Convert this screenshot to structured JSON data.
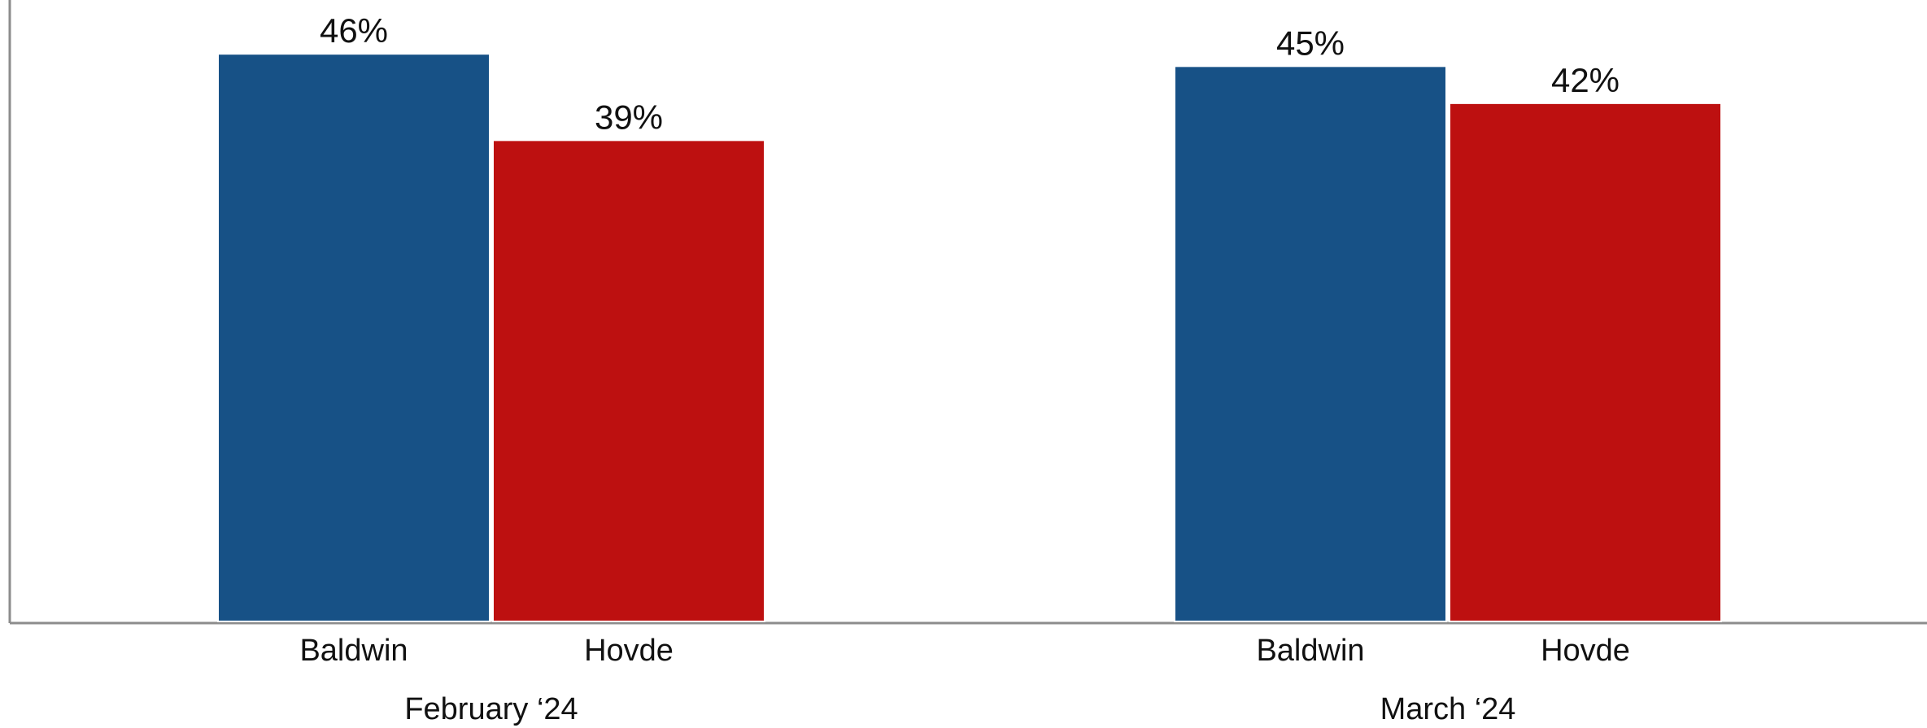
{
  "chart_data": {
    "type": "bar",
    "title": "",
    "xlabel": "",
    "ylabel": "",
    "ylim": [
      0,
      50
    ],
    "grid": false,
    "legend": "none",
    "value_format": "percent",
    "groups": [
      {
        "label": "February ‘24",
        "bars": [
          {
            "category": "Baldwin",
            "value": 46,
            "label": "46%",
            "color": "#175186"
          },
          {
            "category": "Hovde",
            "value": 39,
            "label": "39%",
            "color": "#bd1010"
          }
        ]
      },
      {
        "label": "March ‘24",
        "bars": [
          {
            "category": "Baldwin",
            "value": 45,
            "label": "45%",
            "color": "#175186"
          },
          {
            "category": "Hovde",
            "value": 42,
            "label": "42%",
            "color": "#bd1010"
          }
        ]
      }
    ]
  }
}
